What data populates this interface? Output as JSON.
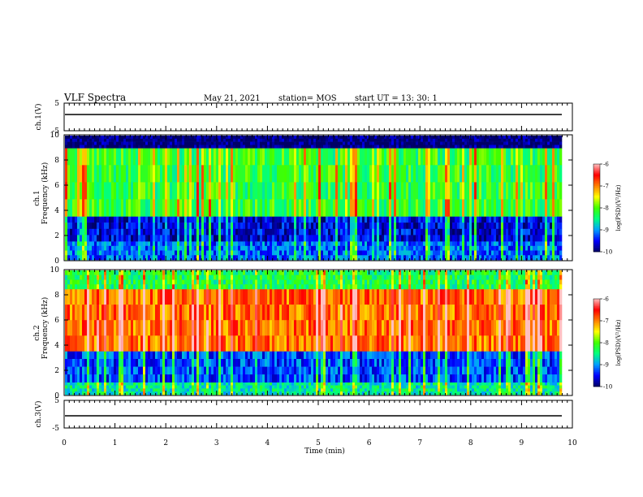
{
  "header": {
    "title": "VLF Spectra",
    "date": "May 21, 2021",
    "station": "station= MOS",
    "start": "start  UT =   13: 30: 1"
  },
  "chart_data": [
    {
      "type": "line",
      "ylabel": "ch.1(V)",
      "ylim": [
        -5,
        5
      ],
      "yticks": [
        "5",
        "-5"
      ],
      "series": [
        {
          "values": [
            0.0
          ]
        }
      ]
    },
    {
      "type": "heatmap",
      "ylabel": "ch.1",
      "ylabel2": "Frequency (kHz)",
      "ylim": [
        0,
        10
      ],
      "yticks": [
        "0",
        "2",
        "4",
        "6",
        "8",
        "10"
      ],
      "xlim": [
        0,
        10
      ],
      "colorbar": {
        "label": "log(PSD)(V²/Hz)",
        "range": [
          -10,
          -6
        ],
        "ticks": [
          "-6",
          "-7",
          "-8",
          "-9",
          "-10"
        ]
      },
      "bands": [
        {
          "freq": [
            0,
            1.5
          ],
          "level": -9.2
        },
        {
          "freq": [
            1.5,
            3.5
          ],
          "level": -9.6
        },
        {
          "freq": [
            3.5,
            9.0
          ],
          "level": -8.2
        },
        {
          "freq": [
            9.0,
            10
          ],
          "level": -10
        }
      ]
    },
    {
      "type": "heatmap",
      "ylabel": "ch.2",
      "ylabel2": "Frequency (kHz)",
      "ylim": [
        0,
        10
      ],
      "yticks": [
        "0",
        "2",
        "4",
        "6",
        "8",
        "10"
      ],
      "xlim": [
        0,
        10
      ],
      "colorbar": {
        "label": "log(PSD)(V²/Hz)",
        "range": [
          -10,
          -6
        ],
        "ticks": [
          "-6",
          "-7",
          "-8",
          "-9",
          "-10"
        ]
      },
      "bands": [
        {
          "freq": [
            0,
            1.0
          ],
          "level": -8.6
        },
        {
          "freq": [
            1.0,
            3.5
          ],
          "level": -9.3
        },
        {
          "freq": [
            3.5,
            8.5
          ],
          "level": -6.9
        },
        {
          "freq": [
            8.5,
            10
          ],
          "level": -8.3
        }
      ]
    },
    {
      "type": "line",
      "ylabel": "ch.3(V)",
      "ylim": [
        -5,
        5
      ],
      "yticks": [
        "5",
        "-5"
      ],
      "series": [
        {
          "values": [
            0.0
          ]
        }
      ]
    }
  ],
  "xaxis": {
    "label": "Time  (min)",
    "range": [
      0,
      10
    ],
    "ticks": [
      "0",
      "1",
      "2",
      "3",
      "4",
      "5",
      "6",
      "7",
      "8",
      "9",
      "10"
    ]
  },
  "colors": {
    "colormap": [
      "#000066",
      "#0000ff",
      "#00a0ff",
      "#00ff80",
      "#40ff00",
      "#ffff00",
      "#ff8000",
      "#ff0000",
      "#ffc0c0"
    ]
  }
}
